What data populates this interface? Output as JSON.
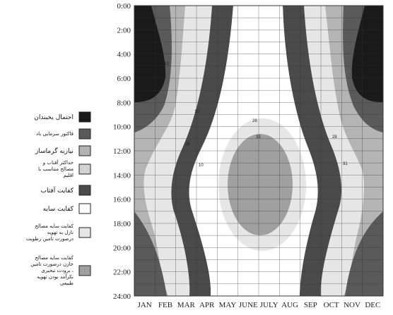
{
  "chart_data": {
    "type": "heatmap",
    "title": "",
    "x_categories": [
      "JAN",
      "FEB",
      "MAR",
      "APR",
      "MAY",
      "JUNE",
      "JULY",
      "AUG",
      "SEP",
      "OCT",
      "NOV",
      "DEC"
    ],
    "y_categories": [
      "0:00",
      "2:00",
      "4:00",
      "6:00",
      "8:00",
      "10:00",
      "12:00",
      "14:00",
      "16:00",
      "18:00",
      "20:00",
      "22:00",
      "24:00"
    ],
    "contour_labels": [
      "10",
      "28",
      "33",
      "10",
      "28",
      "28",
      "31",
      "10"
    ],
    "legend": [
      {
        "label": "احتمال یخبندان",
        "color": "#1a1a1a"
      },
      {
        "label": "فاکتور سرمایی باد",
        "color": "#5a5a5a"
      },
      {
        "label": "نیازبه گرماساز",
        "color": "#b4b4b4"
      },
      {
        "label": "حداکثر آفتاب و مصالح متناسب با اقلیم",
        "color": "#d2d2d2"
      },
      {
        "label": "کفایت آفتاب",
        "color": "#4a4a4a"
      },
      {
        "label": "کفایت سایه",
        "color": "#ffffff"
      },
      {
        "label": "کفایت سایه مصالح نازل به تهویه درصورت تامین رطوبت",
        "color": "#e6e6e6"
      },
      {
        "label": "کفایت سایه مصالح خازن درصورت تامین برودت تبخیری ، نکرآمد بودن تهویه طبیعی",
        "color": "#a0a0a0"
      }
    ],
    "grid": true
  }
}
